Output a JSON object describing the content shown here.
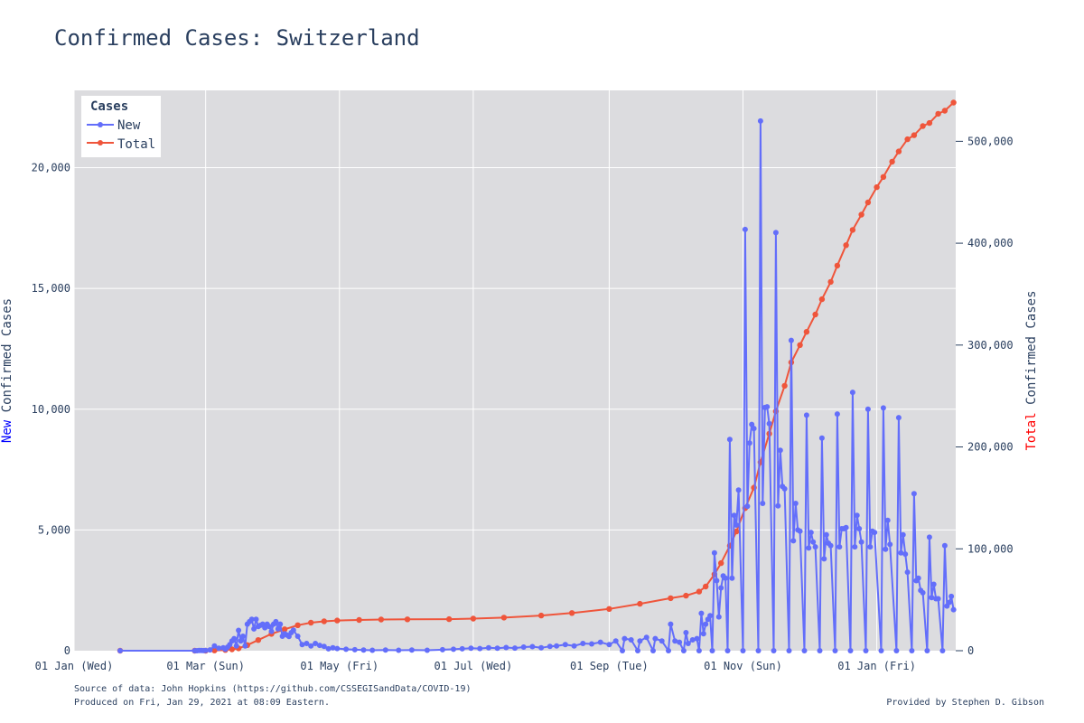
{
  "chart_data": {
    "type": "line",
    "title": "Confirmed Cases: Switzerland",
    "y_left_label_prefix": "New",
    "y_left_label_suffix": " Confirmed Cases",
    "y_right_label_prefix": "Total",
    "y_right_label_suffix": " Confirmed Cases",
    "legend_title": "Cases",
    "legend_position": "top-left",
    "grid": true,
    "x_tick_labels": [
      "01 Jan (Wed)",
      "01 Mar (Sun)",
      "01 May (Fri)",
      "01 Jul (Wed)",
      "01 Sep (Tue)",
      "01 Nov (Sun)",
      "01 Jan (Fri)"
    ],
    "x_tick_dates": [
      "2020-01-01",
      "2020-03-01",
      "2020-05-01",
      "2020-07-01",
      "2020-09-01",
      "2020-11-01",
      "2021-01-01"
    ],
    "x_range": [
      "2020-01-01",
      "2021-02-06"
    ],
    "y_left_ticks": [
      0,
      5000,
      10000,
      15000,
      20000
    ],
    "y_left_tick_labels": [
      "0",
      "5,000",
      "10,000",
      "15,000",
      "20,000"
    ],
    "y_left_range": [
      0,
      23200
    ],
    "y_right_ticks": [
      0,
      100000,
      200000,
      300000,
      400000,
      500000
    ],
    "y_right_tick_labels": [
      "0",
      "100,000",
      "200,000",
      "300,000",
      "400,000",
      "500,000"
    ],
    "y_right_range": [
      0,
      550000
    ],
    "colors": {
      "new": "#636efa",
      "total": "#ef553b",
      "plot_bg": "#dcdcdf",
      "grid": "#ffffff",
      "prefix_new": "#0000ff",
      "prefix_total": "#ff0000"
    },
    "series": [
      {
        "name": "New",
        "axis": "left",
        "points": [
          [
            "2020-01-22",
            0
          ],
          [
            "2020-02-25",
            0
          ],
          [
            "2020-02-26",
            1
          ],
          [
            "2020-02-27",
            8
          ],
          [
            "2020-02-28",
            6
          ],
          [
            "2020-02-29",
            3
          ],
          [
            "2020-03-01",
            12
          ],
          [
            "2020-03-03",
            34
          ],
          [
            "2020-03-05",
            200
          ],
          [
            "2020-03-07",
            100
          ],
          [
            "2020-03-09",
            120
          ],
          [
            "2020-03-10",
            60
          ],
          [
            "2020-03-11",
            150
          ],
          [
            "2020-03-12",
            250
          ],
          [
            "2020-03-13",
            400
          ],
          [
            "2020-03-14",
            500
          ],
          [
            "2020-03-15",
            200
          ],
          [
            "2020-03-16",
            841
          ],
          [
            "2020-03-17",
            400
          ],
          [
            "2020-03-18",
            600
          ],
          [
            "2020-03-19",
            200
          ],
          [
            "2020-03-20",
            1100
          ],
          [
            "2020-03-21",
            1200
          ],
          [
            "2020-03-22",
            1300
          ],
          [
            "2020-03-23",
            900
          ],
          [
            "2020-03-24",
            1300
          ],
          [
            "2020-03-25",
            1000
          ],
          [
            "2020-03-26",
            1050
          ],
          [
            "2020-03-27",
            1100
          ],
          [
            "2020-03-28",
            950
          ],
          [
            "2020-03-29",
            1100
          ],
          [
            "2020-03-30",
            1000
          ],
          [
            "2020-03-31",
            800
          ],
          [
            "2020-04-01",
            1100
          ],
          [
            "2020-04-02",
            1200
          ],
          [
            "2020-04-03",
            900
          ],
          [
            "2020-04-04",
            1100
          ],
          [
            "2020-04-05",
            600
          ],
          [
            "2020-04-06",
            700
          ],
          [
            "2020-04-07",
            650
          ],
          [
            "2020-04-08",
            590
          ],
          [
            "2020-04-09",
            750
          ],
          [
            "2020-04-10",
            850
          ],
          [
            "2020-04-12",
            600
          ],
          [
            "2020-04-14",
            250
          ],
          [
            "2020-04-16",
            300
          ],
          [
            "2020-04-18",
            200
          ],
          [
            "2020-04-20",
            300
          ],
          [
            "2020-04-22",
            220
          ],
          [
            "2020-04-24",
            180
          ],
          [
            "2020-04-26",
            80
          ],
          [
            "2020-04-28",
            120
          ],
          [
            "2020-04-30",
            90
          ],
          [
            "2020-05-04",
            60
          ],
          [
            "2020-05-08",
            40
          ],
          [
            "2020-05-12",
            30
          ],
          [
            "2020-05-16",
            20
          ],
          [
            "2020-05-22",
            30
          ],
          [
            "2020-05-28",
            20
          ],
          [
            "2020-06-03",
            30
          ],
          [
            "2020-06-10",
            20
          ],
          [
            "2020-06-17",
            40
          ],
          [
            "2020-06-22",
            60
          ],
          [
            "2020-06-26",
            80
          ],
          [
            "2020-06-30",
            100
          ],
          [
            "2020-07-04",
            90
          ],
          [
            "2020-07-08",
            120
          ],
          [
            "2020-07-12",
            100
          ],
          [
            "2020-07-16",
            130
          ],
          [
            "2020-07-20",
            110
          ],
          [
            "2020-07-24",
            150
          ],
          [
            "2020-07-28",
            170
          ],
          [
            "2020-08-01",
            120
          ],
          [
            "2020-08-05",
            180
          ],
          [
            "2020-08-08",
            200
          ],
          [
            "2020-08-12",
            250
          ],
          [
            "2020-08-16",
            200
          ],
          [
            "2020-08-20",
            300
          ],
          [
            "2020-08-24",
            280
          ],
          [
            "2020-08-28",
            350
          ],
          [
            "2020-09-01",
            250
          ],
          [
            "2020-09-04",
            400
          ],
          [
            "2020-09-07",
            0
          ],
          [
            "2020-09-08",
            500
          ],
          [
            "2020-09-11",
            450
          ],
          [
            "2020-09-14",
            0
          ],
          [
            "2020-09-15",
            400
          ],
          [
            "2020-09-18",
            550
          ],
          [
            "2020-09-21",
            0
          ],
          [
            "2020-09-22",
            500
          ],
          [
            "2020-09-25",
            400
          ],
          [
            "2020-09-28",
            0
          ],
          [
            "2020-09-29",
            1100
          ],
          [
            "2020-10-01",
            400
          ],
          [
            "2020-10-03",
            350
          ],
          [
            "2020-10-05",
            0
          ],
          [
            "2020-10-06",
            750
          ],
          [
            "2020-10-07",
            300
          ],
          [
            "2020-10-09",
            450
          ],
          [
            "2020-10-11",
            500
          ],
          [
            "2020-10-12",
            0
          ],
          [
            "2020-10-13",
            1550
          ],
          [
            "2020-10-14",
            700
          ],
          [
            "2020-10-15",
            1100
          ],
          [
            "2020-10-16",
            1300
          ],
          [
            "2020-10-17",
            1450
          ],
          [
            "2020-10-18",
            0
          ],
          [
            "2020-10-19",
            4050
          ],
          [
            "2020-10-20",
            2900
          ],
          [
            "2020-10-21",
            1400
          ],
          [
            "2020-10-22",
            2600
          ],
          [
            "2020-10-23",
            3100
          ],
          [
            "2020-10-24",
            3000
          ],
          [
            "2020-10-25",
            0
          ],
          [
            "2020-10-26",
            8750
          ],
          [
            "2020-10-27",
            3000
          ],
          [
            "2020-10-28",
            5600
          ],
          [
            "2020-10-29",
            5200
          ],
          [
            "2020-10-30",
            6650
          ],
          [
            "2020-11-01",
            0
          ],
          [
            "2020-11-02",
            17440
          ],
          [
            "2020-11-03",
            5980
          ],
          [
            "2020-11-04",
            8600
          ],
          [
            "2020-11-05",
            9370
          ],
          [
            "2020-11-06",
            9200
          ],
          [
            "2020-11-08",
            0
          ],
          [
            "2020-11-09",
            21930
          ],
          [
            "2020-11-10",
            6100
          ],
          [
            "2020-11-11",
            10070
          ],
          [
            "2020-11-12",
            10100
          ],
          [
            "2020-11-13",
            9400
          ],
          [
            "2020-11-15",
            0
          ],
          [
            "2020-11-16",
            17310
          ],
          [
            "2020-11-17",
            6000
          ],
          [
            "2020-11-18",
            8300
          ],
          [
            "2020-11-19",
            6800
          ],
          [
            "2020-11-20",
            6700
          ],
          [
            "2020-11-22",
            0
          ],
          [
            "2020-11-23",
            12850
          ],
          [
            "2020-11-24",
            4550
          ],
          [
            "2020-11-25",
            6100
          ],
          [
            "2020-11-26",
            5000
          ],
          [
            "2020-11-27",
            4950
          ],
          [
            "2020-11-29",
            0
          ],
          [
            "2020-11-30",
            9750
          ],
          [
            "2020-12-01",
            4250
          ],
          [
            "2020-12-02",
            4900
          ],
          [
            "2020-12-03",
            4500
          ],
          [
            "2020-12-04",
            4300
          ],
          [
            "2020-12-06",
            0
          ],
          [
            "2020-12-07",
            8800
          ],
          [
            "2020-12-08",
            3800
          ],
          [
            "2020-12-09",
            4800
          ],
          [
            "2020-12-10",
            4450
          ],
          [
            "2020-12-11",
            4350
          ],
          [
            "2020-12-13",
            0
          ],
          [
            "2020-12-14",
            9800
          ],
          [
            "2020-12-15",
            4300
          ],
          [
            "2020-12-16",
            5050
          ],
          [
            "2020-12-17",
            5050
          ],
          [
            "2020-12-18",
            5100
          ],
          [
            "2020-12-20",
            0
          ],
          [
            "2020-12-21",
            10700
          ],
          [
            "2020-12-22",
            4300
          ],
          [
            "2020-12-23",
            5600
          ],
          [
            "2020-12-24",
            5050
          ],
          [
            "2020-12-25",
            4500
          ],
          [
            "2020-12-27",
            0
          ],
          [
            "2020-12-28",
            10000
          ],
          [
            "2020-12-29",
            4300
          ],
          [
            "2020-12-30",
            4950
          ],
          [
            "2020-12-31",
            4900
          ],
          [
            "2021-01-03",
            0
          ],
          [
            "2021-01-04",
            10050
          ],
          [
            "2021-01-05",
            4200
          ],
          [
            "2021-01-06",
            5400
          ],
          [
            "2021-01-07",
            4400
          ],
          [
            "2021-01-10",
            0
          ],
          [
            "2021-01-11",
            9650
          ],
          [
            "2021-01-12",
            4050
          ],
          [
            "2021-01-13",
            4800
          ],
          [
            "2021-01-14",
            4000
          ],
          [
            "2021-01-15",
            3250
          ],
          [
            "2021-01-17",
            0
          ],
          [
            "2021-01-18",
            6500
          ],
          [
            "2021-01-19",
            2900
          ],
          [
            "2021-01-20",
            3000
          ],
          [
            "2021-01-21",
            2500
          ],
          [
            "2021-01-22",
            2400
          ],
          [
            "2021-01-24",
            0
          ],
          [
            "2021-01-25",
            4700
          ],
          [
            "2021-01-26",
            2200
          ],
          [
            "2021-01-27",
            2750
          ],
          [
            "2021-01-28",
            2150
          ],
          [
            "2021-01-29",
            2150
          ],
          [
            "2021-01-31",
            0
          ],
          [
            "2021-02-01",
            4350
          ],
          [
            "2021-02-02",
            1850
          ],
          [
            "2021-02-03",
            2000
          ],
          [
            "2021-02-04",
            2250
          ],
          [
            "2021-02-05",
            1700
          ]
        ]
      },
      {
        "name": "Total",
        "axis": "right",
        "points": [
          [
            "2020-01-22",
            0
          ],
          [
            "2020-02-25",
            0
          ],
          [
            "2020-03-01",
            27
          ],
          [
            "2020-03-05",
            300
          ],
          [
            "2020-03-10",
            700
          ],
          [
            "2020-03-13",
            1300
          ],
          [
            "2020-03-16",
            2300
          ],
          [
            "2020-03-20",
            5500
          ],
          [
            "2020-03-25",
            10500
          ],
          [
            "2020-03-31",
            16500
          ],
          [
            "2020-04-06",
            21000
          ],
          [
            "2020-04-12",
            25000
          ],
          [
            "2020-04-18",
            27500
          ],
          [
            "2020-04-24",
            28800
          ],
          [
            "2020-04-30",
            29600
          ],
          [
            "2020-05-10",
            30200
          ],
          [
            "2020-05-20",
            30600
          ],
          [
            "2020-06-01",
            30800
          ],
          [
            "2020-06-20",
            31000
          ],
          [
            "2020-07-01",
            31500
          ],
          [
            "2020-07-15",
            32500
          ],
          [
            "2020-08-01",
            34500
          ],
          [
            "2020-08-15",
            37000
          ],
          [
            "2020-09-01",
            41000
          ],
          [
            "2020-09-15",
            46000
          ],
          [
            "2020-09-29",
            51500
          ],
          [
            "2020-10-06",
            54000
          ],
          [
            "2020-10-12",
            58000
          ],
          [
            "2020-10-15",
            63000
          ],
          [
            "2020-10-19",
            75000
          ],
          [
            "2020-10-22",
            86000
          ],
          [
            "2020-10-26",
            103000
          ],
          [
            "2020-10-29",
            117000
          ],
          [
            "2020-11-02",
            140000
          ],
          [
            "2020-11-06",
            160000
          ],
          [
            "2020-11-09",
            185000
          ],
          [
            "2020-11-13",
            213000
          ],
          [
            "2020-11-16",
            235000
          ],
          [
            "2020-11-20",
            260000
          ],
          [
            "2020-11-23",
            283000
          ],
          [
            "2020-11-27",
            300000
          ],
          [
            "2020-11-30",
            313000
          ],
          [
            "2020-12-04",
            330000
          ],
          [
            "2020-12-07",
            345000
          ],
          [
            "2020-12-11",
            362000
          ],
          [
            "2020-12-14",
            378000
          ],
          [
            "2020-12-18",
            398000
          ],
          [
            "2020-12-21",
            413000
          ],
          [
            "2020-12-25",
            428000
          ],
          [
            "2020-12-28",
            440000
          ],
          [
            "2021-01-01",
            455000
          ],
          [
            "2021-01-04",
            465000
          ],
          [
            "2021-01-08",
            480000
          ],
          [
            "2021-01-11",
            490000
          ],
          [
            "2021-01-15",
            502000
          ],
          [
            "2021-01-18",
            506000
          ],
          [
            "2021-01-22",
            515000
          ],
          [
            "2021-01-25",
            518000
          ],
          [
            "2021-01-29",
            527000
          ],
          [
            "2021-02-01",
            530000
          ],
          [
            "2021-02-05",
            538000
          ]
        ]
      }
    ]
  },
  "footer": {
    "source": "Source of data: John Hopkins (https://github.com/CSSEGISandData/COVID-19)",
    "produced": "Produced on Fri, Jan 29, 2021 at 08:09 Eastern.",
    "credit": "Provided by Stephen D. Gibson"
  }
}
